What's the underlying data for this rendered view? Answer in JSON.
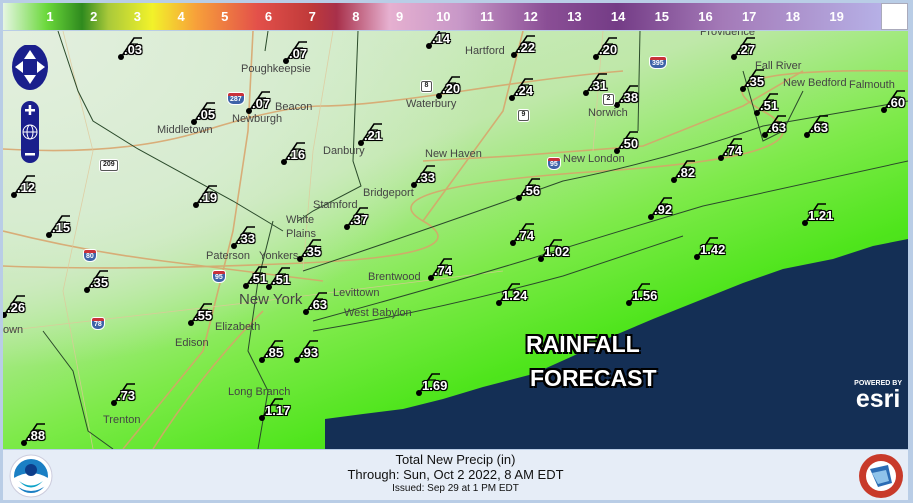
{
  "legend": {
    "labels": [
      "1",
      "2",
      "3",
      "4",
      "5",
      "6",
      "7",
      "8",
      "9",
      "10",
      "11",
      "12",
      "13",
      "14",
      "15",
      "16",
      "17",
      "18",
      "19"
    ]
  },
  "map": {
    "title_line1": "RAINFALL",
    "title_line2": "FORECAST",
    "ocean_color": "#142f55",
    "stations": [
      ".14",
      ".22",
      ".20",
      ".27",
      ".60",
      ".03",
      ".07",
      ".07",
      ".05",
      ".20",
      ".24",
      ".31",
      ".38",
      ".21",
      ".16",
      ".50",
      ".35",
      ".51",
      ".63",
      ".63",
      ".74",
      ".82",
      ".92",
      ".56",
      ".33",
      ".12",
      ".19",
      ".15",
      ".37",
      ".35",
      ".33",
      ".74",
      "1.02",
      "1.42",
      "1.21",
      ".51",
      ".51",
      ".35",
      ".26",
      ".55",
      ".63",
      ".74",
      "1.24",
      "1.56",
      ".85",
      ".93",
      ".73",
      "1.69",
      "1.17",
      ".88"
    ],
    "cities": [
      "Poughkeepsie",
      "Newburgh",
      "Beacon",
      "Middletown",
      "Danbury",
      "Waterbury",
      "Hartford",
      "New Haven",
      "Bridgeport",
      "Norwich",
      "New London",
      "Providence",
      "Fall River",
      "New Bedford",
      "Falmouth",
      "White",
      "Plains",
      "Stamford",
      "Paterson",
      "Yonkers",
      "New York",
      "Elizabeth",
      "Edison",
      "Levittown",
      "West Babylon",
      "Brentwood",
      "Long Branch",
      "Trenton",
      "own"
    ],
    "highway_shields": [
      "80",
      "78",
      "209",
      "95",
      "395",
      "8",
      "9",
      "2",
      "95",
      "287"
    ],
    "attribution": {
      "powered_by": "POWERED BY",
      "brand": "esri"
    },
    "controls": [
      "pan-up",
      "pan-left",
      "pan-right",
      "pan-down",
      "zoom-in",
      "zoom-world",
      "zoom-out"
    ]
  },
  "footer": {
    "line1": "Total New Precip (in)",
    "line2": "Through: Sun, Oct   2 2022,   8 AM EDT",
    "line3": "Issued: Sep 29 at 1 PM EDT",
    "left_logo": "NOAA",
    "right_logo": "NATIONAL WEATHER SERVICE"
  }
}
